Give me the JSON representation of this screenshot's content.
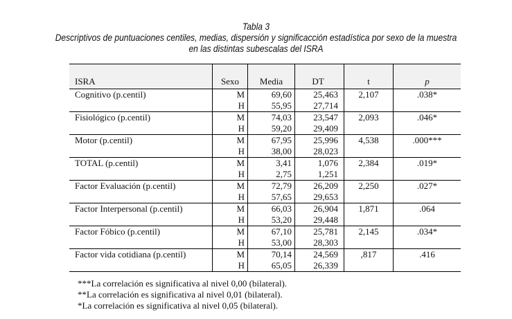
{
  "caption": {
    "label": "Tabla 3",
    "title_line1": "Descriptivos de puntuaciones centiles, medias, dispersión y significacción estadística por sexo de la muestra",
    "title_line2": "en las distintas subescalas del ISRA"
  },
  "table": {
    "headers": [
      "ISRA",
      "Sexo",
      "Media",
      "DT",
      "t",
      "p"
    ],
    "groups": [
      {
        "label": "Cognitivo (p.centil)",
        "rows": [
          {
            "sexo": "M",
            "media": "69,60",
            "dt": "25,463"
          },
          {
            "sexo": "H",
            "media": "55,95",
            "dt": "27,714"
          }
        ],
        "t": "2,107",
        "p": ".038*"
      },
      {
        "label": "Fisiológico (p.centil)",
        "rows": [
          {
            "sexo": "M",
            "media": "74,03",
            "dt": "23,547"
          },
          {
            "sexo": "H",
            "media": "59,20",
            "dt": "29,409"
          }
        ],
        "t": "2,093",
        "p": ".046*"
      },
      {
        "label": "Motor (p.centil)",
        "rows": [
          {
            "sexo": "M",
            "media": "67,95",
            "dt": "25,996"
          },
          {
            "sexo": "H",
            "media": "38,00",
            "dt": "28,023"
          }
        ],
        "t": "4,538",
        "p": ".000***"
      },
      {
        "label": "TOTAL (p.centil)",
        "rows": [
          {
            "sexo": "M",
            "media": "3,41",
            "dt": "1,076"
          },
          {
            "sexo": "H",
            "media": "2,75",
            "dt": "1,251"
          }
        ],
        "t": "2,384",
        "p": ".019*"
      },
      {
        "label": "Factor Evaluación (p.centil)",
        "rows": [
          {
            "sexo": "M",
            "media": "72,79",
            "dt": "26,209"
          },
          {
            "sexo": "H",
            "media": "57,65",
            "dt": "29,653"
          }
        ],
        "t": "2,250",
        "p": ".027*"
      },
      {
        "label": "Factor Interpersonal (p.centil)",
        "rows": [
          {
            "sexo": "M",
            "media": "66,03",
            "dt": "26,904"
          },
          {
            "sexo": "H",
            "media": "53,20",
            "dt": "29,448"
          }
        ],
        "t": "1,871",
        "p": ".064"
      },
      {
        "label": "Factor Fóbico (p.centil)",
        "rows": [
          {
            "sexo": "M",
            "media": "67,10",
            "dt": "25,781"
          },
          {
            "sexo": "H",
            "media": "53,00",
            "dt": "28,303"
          }
        ],
        "t": "2,145",
        "p": ".034*"
      },
      {
        "label": "Factor vida cotidiana (p.centil)",
        "rows": [
          {
            "sexo": "M",
            "media": "70,14",
            "dt": "24,569"
          },
          {
            "sexo": "H",
            "media": "65,05",
            "dt": "26,339"
          }
        ],
        "t": ",817",
        "p": ".416"
      }
    ]
  },
  "notes": [
    "***La correlación es significativa al nivel 0,00 (bilateral).",
    "**La correlación es significativa al nivel 0,01 (bilateral).",
    "*La correlación es significativa al nivel 0,05 (bilateral)."
  ]
}
